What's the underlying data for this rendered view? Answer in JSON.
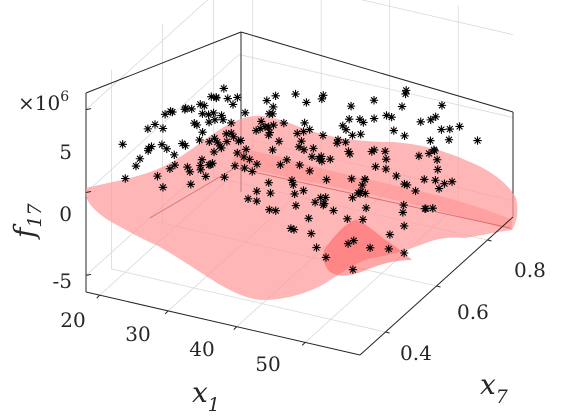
{
  "chart_data": {
    "type": "scatter",
    "surface": true,
    "title": "",
    "xlabel": "x",
    "xlabel_sub": "1",
    "ylabel": "x",
    "ylabel_sub": "7",
    "zlabel": "f",
    "zlabel_sub": "17",
    "z_exponent_label": "×10^6",
    "z_exponent_base": "×10",
    "z_exponent_power": "6",
    "xlim": [
      18,
      58
    ],
    "ylim": [
      0.3,
      0.9
    ],
    "zlim": [
      -6000000,
      6000000
    ],
    "x_ticks": [
      "20",
      "30",
      "40",
      "50"
    ],
    "y_ticks": [
      "0.4",
      "0.6",
      "0.8"
    ],
    "z_ticks": [
      "5",
      "0",
      "-5"
    ],
    "grid": true,
    "marker": "*",
    "marker_color": "#000000",
    "surface_color": "#ff9a9a",
    "n_points": 260
  }
}
